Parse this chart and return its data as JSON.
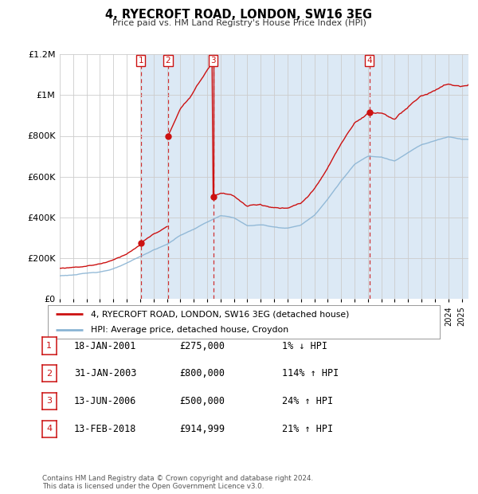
{
  "title": "4, RYECROFT ROAD, LONDON, SW16 3EG",
  "subtitle": "Price paid vs. HM Land Registry's House Price Index (HPI)",
  "ylim": [
    0,
    1200000
  ],
  "yticks": [
    0,
    200000,
    400000,
    600000,
    800000,
    1000000,
    1200000
  ],
  "ytick_labels": [
    "£0",
    "£200K",
    "£400K",
    "£600K",
    "£800K",
    "£1M",
    "£1.2M"
  ],
  "xlim_start": 1995.0,
  "xlim_end": 2025.5,
  "bg_color": "#ffffff",
  "plot_bg_color": "#ffffff",
  "shade_color": "#dce9f5",
  "grid_color": "#cccccc",
  "hpi_line_color": "#8ab4d4",
  "price_line_color": "#cc1111",
  "sale_marker_color": "#cc1111",
  "dashed_line_color": "#cc1111",
  "transaction_label_color": "#cc1111",
  "transactions": [
    {
      "num": 1,
      "date": "18-JAN-2001",
      "price": 275000,
      "year": 2001.05,
      "hpi_pct": "1%",
      "direction": "↓"
    },
    {
      "num": 2,
      "date": "31-JAN-2003",
      "price": 800000,
      "year": 2003.08,
      "hpi_pct": "114%",
      "direction": "↑"
    },
    {
      "num": 3,
      "date": "13-JUN-2006",
      "price": 500000,
      "year": 2006.45,
      "hpi_pct": "24%",
      "direction": "↑"
    },
    {
      "num": 4,
      "date": "13-FEB-2018",
      "price": 914999,
      "year": 2018.12,
      "hpi_pct": "21%",
      "direction": "↑"
    }
  ],
  "legend_line1": "4, RYECROFT ROAD, LONDON, SW16 3EG (detached house)",
  "legend_line2": "HPI: Average price, detached house, Croydon",
  "footnote1": "Contains HM Land Registry data © Crown copyright and database right 2024.",
  "footnote2": "This data is licensed under the Open Government Licence v3.0."
}
